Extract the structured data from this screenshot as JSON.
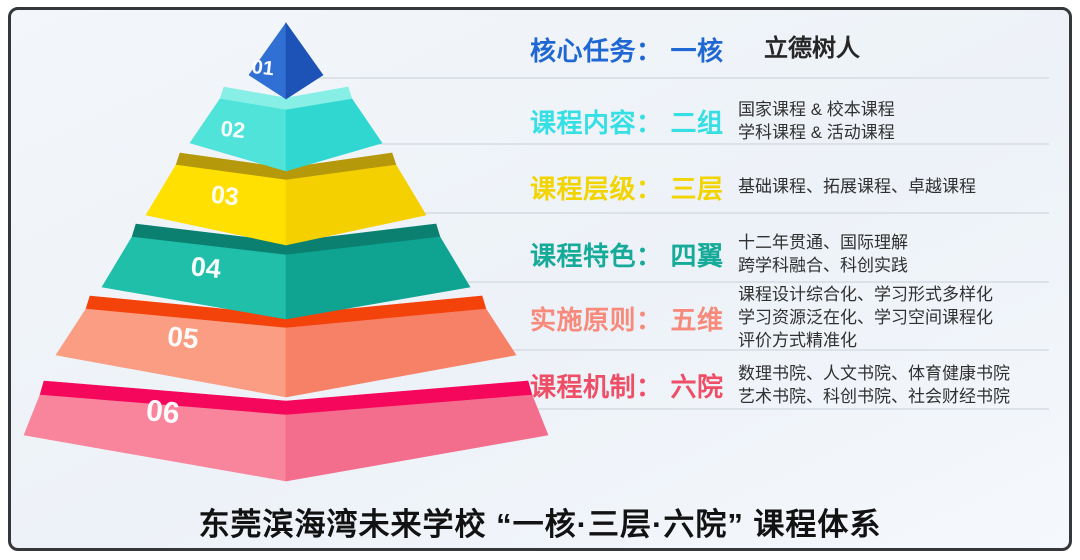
{
  "chart_data": {
    "type": "pyramid",
    "title": "东莞滨海湾未来学校 “一核·三层·六院” 课程体系",
    "background_color": "#eff3f8",
    "separator_line_color": "#d6dbe3",
    "levels": [
      {
        "number": "01",
        "heading": "核心任务：",
        "count_word": "一核",
        "heading_color": "#1f67d2",
        "items": [
          "立德树人"
        ],
        "colors": {
          "left": "#3070d4",
          "right": "#1d53b6",
          "rim": null
        }
      },
      {
        "number": "02",
        "heading": "课程内容：",
        "count_word": "二组",
        "heading_color": "#35dfe4",
        "items": [
          "国家课程 & 校本课程",
          "学科课程 & 活动课程"
        ],
        "colors": {
          "left": "#4fe3d9",
          "right": "#30d7d1",
          "rim": "#87efe6"
        }
      },
      {
        "number": "03",
        "heading": "课程层级：",
        "count_word": "三层",
        "heading_color": "#f2d400",
        "items": [
          "基础课程、拓展课程、卓越课程"
        ],
        "colors": {
          "left": "#ffe000",
          "right": "#f5d000",
          "rim": "#b5990a"
        }
      },
      {
        "number": "04",
        "heading": "课程特色：",
        "count_word": "四翼",
        "heading_color": "#16ab99",
        "items": [
          "十二年贯通、国际理解",
          "跨学科融合、科创实践"
        ],
        "colors": {
          "left": "#1fbfa9",
          "right": "#0fa492",
          "rim": "#0b8070"
        }
      },
      {
        "number": "05",
        "heading": "实施原则：",
        "count_word": "五维",
        "heading_color": "#f88a7c",
        "items": [
          "课程设计综合化、学习形式多样化",
          "学习资源泛在化、学习空间课程化",
          "评价方式精准化"
        ],
        "colors": {
          "left": "#fa9d83",
          "right": "#f78166",
          "rim": "#f4420b"
        }
      },
      {
        "number": "06",
        "heading": "课程机制：",
        "count_word": "六院",
        "heading_color": "#ee4f67",
        "items": [
          "数理书院、人文书院、体育健康书院",
          "艺术书院、科创书院、社会财经书院"
        ],
        "colors": {
          "left": "#f9859d",
          "right": "#f36d8d",
          "rim": "#f5075b"
        }
      }
    ]
  }
}
